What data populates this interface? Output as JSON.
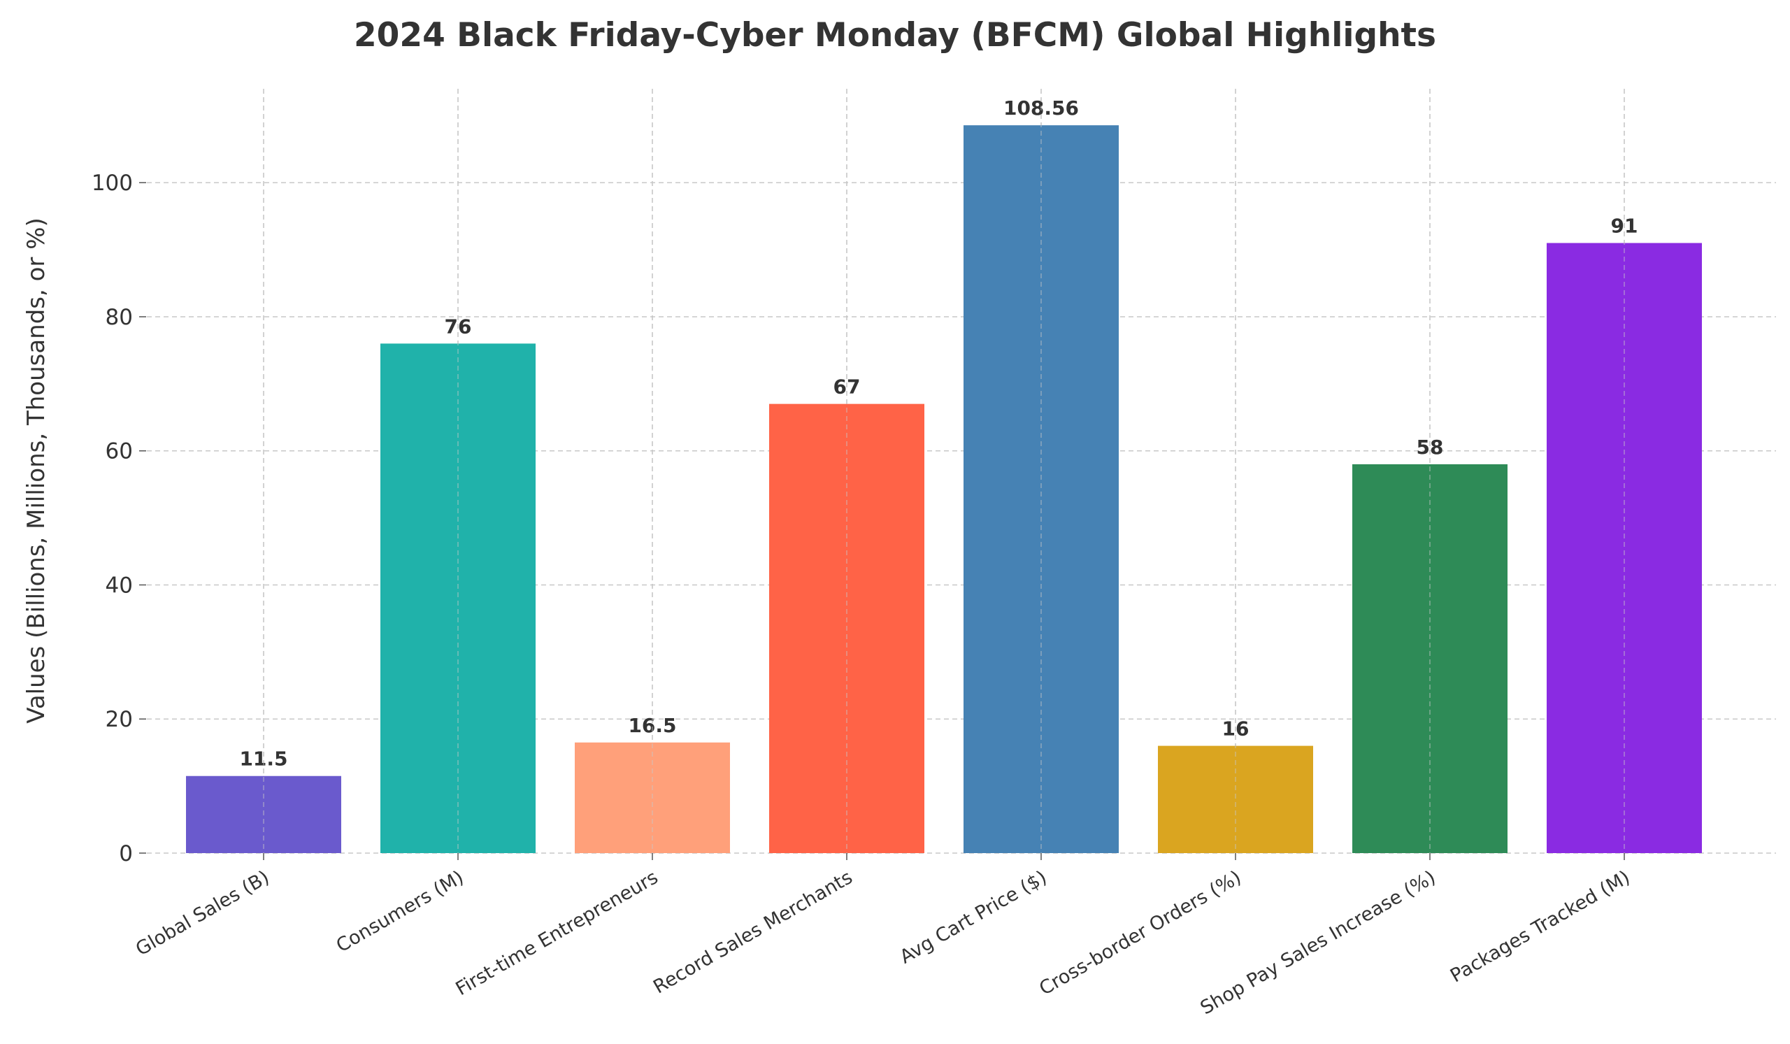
{
  "chart_data": {
    "type": "bar",
    "title": "2024 Black Friday-Cyber Monday (BFCM) Global Highlights",
    "xlabel": "",
    "ylabel": "Values (Billions, Millions, Thousands, or %)",
    "categories": [
      "Global Sales (B)",
      "Consumers (M)",
      "First-time Entrepreneurs",
      "Record Sales Merchants",
      "Avg Cart Price ($)",
      "Cross-border Orders (%)",
      "Shop Pay Sales Increase (%)",
      "Packages Tracked (M)"
    ],
    "values": [
      11.5,
      76,
      16.5,
      67,
      108.56,
      16,
      58,
      91
    ],
    "value_labels": [
      "11.5",
      "76",
      "16.5",
      "67",
      "108.56",
      "16",
      "58",
      "91"
    ],
    "colors": [
      "#6A5ACD",
      "#20B2AA",
      "#FFA07A",
      "#FF6347",
      "#4682B4",
      "#DAA520",
      "#2E8B57",
      "#8A2BE2"
    ],
    "ylim": [
      0,
      114
    ],
    "yticks": [
      0,
      20,
      40,
      60,
      80,
      100
    ],
    "grid": true,
    "legend": null
  }
}
